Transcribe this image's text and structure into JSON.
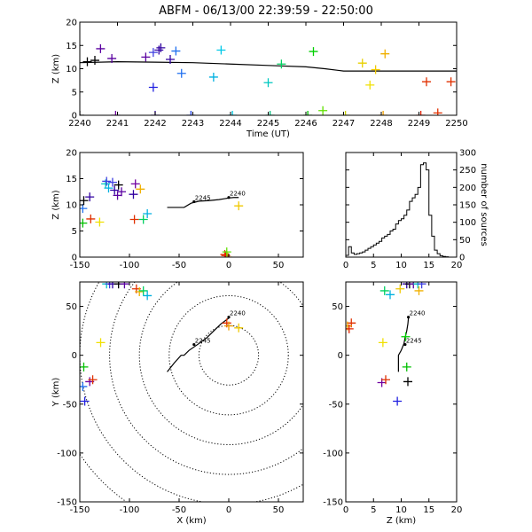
{
  "title": "ABFM - 06/13/00 22:39:59 - 22:50:00",
  "chart_data": [
    {
      "id": "time-height",
      "type": "scatter",
      "xlabel": "Time (UT)",
      "ylabel": "Z (km)",
      "xlim": [
        2240,
        2250
      ],
      "ylim": [
        0,
        20
      ],
      "xticks": [
        2240,
        2241,
        2242,
        2243,
        2244,
        2245,
        2246,
        2247,
        2248,
        2249,
        2250
      ],
      "yticks": [
        0,
        5,
        10,
        15,
        20
      ],
      "points": [
        {
          "x": 2240.2,
          "z": 11.5,
          "color": "#000000"
        },
        {
          "x": 2240.4,
          "z": 11.8,
          "color": "#000000"
        },
        {
          "x": 2240.55,
          "z": 14.3,
          "color": "#5a00a0"
        },
        {
          "x": 2240.85,
          "z": 12.2,
          "color": "#5a00a0"
        },
        {
          "x": 2241.75,
          "z": 12.5,
          "color": "#5a00a0"
        },
        {
          "x": 2241.95,
          "z": 13.5,
          "color": "#4040e0"
        },
        {
          "x": 2242.1,
          "z": 14.0,
          "color": "#3000a0"
        },
        {
          "x": 2242.15,
          "z": 14.5,
          "color": "#3000a0"
        },
        {
          "x": 2242.4,
          "z": 12.0,
          "color": "#3000a0"
        },
        {
          "x": 2242.55,
          "z": 13.8,
          "color": "#2070f0"
        },
        {
          "x": 2242.7,
          "z": 9.0,
          "color": "#2070f0"
        },
        {
          "x": 2241.95,
          "z": 6.0,
          "color": "#2020e0"
        },
        {
          "x": 2243.55,
          "z": 8.2,
          "color": "#00b0e0"
        },
        {
          "x": 2243.75,
          "z": 14.0,
          "color": "#00c8e8"
        },
        {
          "x": 2245.0,
          "z": 7.0,
          "color": "#00c8c0"
        },
        {
          "x": 2245.35,
          "z": 11.0,
          "color": "#00d060"
        },
        {
          "x": 2246.2,
          "z": 13.7,
          "color": "#00d000"
        },
        {
          "x": 2246.45,
          "z": 1.0,
          "color": "#60e000"
        },
        {
          "x": 2247.5,
          "z": 11.2,
          "color": "#e8d000"
        },
        {
          "x": 2247.7,
          "z": 6.5,
          "color": "#f0e000"
        },
        {
          "x": 2247.85,
          "z": 9.8,
          "color": "#f0c800"
        },
        {
          "x": 2248.1,
          "z": 13.2,
          "color": "#f0b000"
        },
        {
          "x": 2249.2,
          "z": 7.2,
          "color": "#e03000"
        },
        {
          "x": 2249.5,
          "z": 0.5,
          "color": "#e03000"
        },
        {
          "x": 2249.85,
          "z": 7.2,
          "color": "#e03000"
        },
        {
          "x": 2240.0,
          "z": 0.0,
          "color": "#000000"
        },
        {
          "x": 2240.95,
          "z": 0.0,
          "color": "#7000a0"
        },
        {
          "x": 2242.0,
          "z": 0.0,
          "color": "#3000a0"
        },
        {
          "x": 2242.95,
          "z": 0.0,
          "color": "#2040e0"
        },
        {
          "x": 2244.05,
          "z": 0.0,
          "color": "#00c8e0"
        },
        {
          "x": 2245.05,
          "z": 0.0,
          "color": "#00c080"
        },
        {
          "x": 2246.05,
          "z": 0.0,
          "color": "#00c000"
        },
        {
          "x": 2247.05,
          "z": 0.0,
          "color": "#c8d000"
        },
        {
          "x": 2248.05,
          "z": 0.0,
          "color": "#f0a000"
        },
        {
          "x": 2249.05,
          "z": 0.0,
          "color": "#e02000"
        }
      ],
      "line": {
        "x": [
          2240,
          2241,
          2242,
          2243,
          2244,
          2245,
          2246,
          2246.5,
          2247,
          2248,
          2249,
          2250
        ],
        "z": [
          11.3,
          11.5,
          11.4,
          11.3,
          11.0,
          10.7,
          10.4,
          10.0,
          9.5,
          9.5,
          9.5,
          9.5
        ]
      }
    },
    {
      "id": "x-height",
      "type": "scatter",
      "xlabel": "",
      "ylabel": "Z (km)",
      "xlim": [
        -150,
        75
      ],
      "ylim": [
        0,
        20
      ],
      "xticks": [
        -150,
        -100,
        -50,
        0,
        50
      ],
      "yticks": [
        0,
        5,
        10,
        15,
        20
      ],
      "points": [
        {
          "x": -146,
          "z": 10.8,
          "color": "#000000"
        },
        {
          "x": -140,
          "z": 11.5,
          "color": "#3000a0"
        },
        {
          "x": -147,
          "z": 9.3,
          "color": "#2070f0"
        },
        {
          "x": -147,
          "z": 6.5,
          "color": "#00c000"
        },
        {
          "x": -139,
          "z": 7.3,
          "color": "#e03000"
        },
        {
          "x": -130,
          "z": 6.7,
          "color": "#f0e000"
        },
        {
          "x": -124,
          "z": 14.0,
          "color": "#00c8c0"
        },
        {
          "x": -123,
          "z": 14.5,
          "color": "#4040e0"
        },
        {
          "x": -121,
          "z": 13.2,
          "color": "#00b0e0"
        },
        {
          "x": -117,
          "z": 14.3,
          "color": "#4040e0"
        },
        {
          "x": -115,
          "z": 12.8,
          "color": "#3000a0"
        },
        {
          "x": -112,
          "z": 11.8,
          "color": "#5a00a0"
        },
        {
          "x": -108,
          "z": 12.5,
          "color": "#5a00a0"
        },
        {
          "x": -111,
          "z": 13.8,
          "color": "#000000"
        },
        {
          "x": -96,
          "z": 12.0,
          "color": "#3000a0"
        },
        {
          "x": -94,
          "z": 14.0,
          "color": "#7000a0"
        },
        {
          "x": -89,
          "z": 13.0,
          "color": "#f0b000"
        },
        {
          "x": -95,
          "z": 7.2,
          "color": "#e03000"
        },
        {
          "x": -86,
          "z": 7.2,
          "color": "#00d060"
        },
        {
          "x": -82,
          "z": 8.3,
          "color": "#00b0e0"
        },
        {
          "x": 10,
          "z": 9.8,
          "color": "#f0c800"
        },
        {
          "x": -4,
          "z": 0.5,
          "color": "#e03000"
        },
        {
          "x": -1,
          "z": 0.0,
          "color": "#f0a000"
        },
        {
          "x": -3,
          "z": 0.3,
          "color": "#e02000"
        },
        {
          "x": -2,
          "z": 1.0,
          "color": "#60e000"
        }
      ],
      "line": {
        "x": [
          -62,
          -45,
          -38,
          -30,
          -20,
          -10,
          0,
          5,
          10
        ],
        "z": [
          9.5,
          9.5,
          10.3,
          10.7,
          10.8,
          11.0,
          11.3,
          11.4,
          11.4
        ]
      },
      "annotations": [
        {
          "text": "2245",
          "x": -35,
          "z": 10.6
        },
        {
          "text": "2240",
          "x": 0,
          "z": 11.4
        }
      ]
    },
    {
      "id": "height-histogram",
      "type": "histogram",
      "xlabel": "",
      "ylabel": "number of sources",
      "xlim": [
        0,
        20
      ],
      "ylim": [
        0,
        300
      ],
      "xticks": [
        0,
        5,
        10,
        15,
        20
      ],
      "yticks": [
        0,
        50,
        100,
        150,
        200,
        250,
        300
      ],
      "bins_x": [
        0,
        0.5,
        1,
        1.5,
        2,
        2.5,
        3,
        3.5,
        4,
        4.5,
        5,
        5.5,
        6,
        6.5,
        7,
        7.5,
        8,
        8.5,
        9,
        9.5,
        10,
        10.5,
        11,
        11.5,
        12,
        12.5,
        13,
        13.5,
        14,
        14.5,
        15,
        15.5,
        16,
        16.5,
        17,
        17.5,
        18,
        18.5,
        19,
        19.5
      ],
      "counts": [
        5,
        30,
        12,
        8,
        10,
        12,
        15,
        20,
        25,
        30,
        35,
        40,
        45,
        55,
        60,
        65,
        75,
        80,
        95,
        105,
        110,
        120,
        135,
        160,
        170,
        180,
        200,
        265,
        270,
        250,
        120,
        60,
        20,
        10,
        4,
        2,
        1,
        0,
        0,
        0
      ]
    },
    {
      "id": "plan-view",
      "type": "scatter",
      "xlabel": "X (km)",
      "ylabel": "Y (km)",
      "xlim": [
        -150,
        75
      ],
      "ylim": [
        -150,
        75
      ],
      "xticks": [
        -150,
        -100,
        -50,
        0,
        50
      ],
      "yticks": [
        -150,
        -100,
        -50,
        0,
        50
      ],
      "points": [
        {
          "x": -145,
          "y": -47,
          "color": "#2020e0"
        },
        {
          "x": -147,
          "y": -32,
          "color": "#2070f0"
        },
        {
          "x": -146,
          "y": -12,
          "color": "#00c000"
        },
        {
          "x": -140,
          "y": -27,
          "color": "#7000a0"
        },
        {
          "x": -137,
          "y": -25,
          "color": "#e03000"
        },
        {
          "x": -129,
          "y": 13,
          "color": "#f0e000"
        },
        {
          "x": -123,
          "y": 73,
          "color": "#00c8c0"
        },
        {
          "x": -120,
          "y": 73,
          "color": "#4040e0"
        },
        {
          "x": -117,
          "y": 73,
          "color": "#3000a0"
        },
        {
          "x": -111,
          "y": 73,
          "color": "#000000"
        },
        {
          "x": -105,
          "y": 73,
          "color": "#5a00a0"
        },
        {
          "x": -93,
          "y": 68,
          "color": "#e03000"
        },
        {
          "x": -90,
          "y": 65,
          "color": "#f0b000"
        },
        {
          "x": -86,
          "y": 66,
          "color": "#00d060"
        },
        {
          "x": -82,
          "y": 61,
          "color": "#00b0e0"
        },
        {
          "x": -2,
          "y": 33,
          "color": "#e03000"
        },
        {
          "x": 0,
          "y": 30,
          "color": "#f0a000"
        },
        {
          "x": 10,
          "y": 28,
          "color": "#f0c800"
        }
      ],
      "line": {
        "x": [
          -62,
          -55,
          -48,
          -45,
          -40,
          -30,
          -22,
          -15,
          -8,
          0
        ],
        "y": [
          -17,
          -8,
          0,
          0,
          5,
          12,
          18,
          25,
          32,
          38
        ]
      },
      "annotations": [
        {
          "text": "2240",
          "x": 0,
          "y": 39
        },
        {
          "text": "2245",
          "x": -35,
          "y": 11
        }
      ],
      "range_rings_km": [
        30,
        60,
        90,
        120,
        150,
        180
      ],
      "ring_center": [
        0,
        0
      ]
    },
    {
      "id": "z-y-view",
      "type": "scatter",
      "xlabel": "Z (km)",
      "ylabel": "",
      "xlim": [
        0,
        20
      ],
      "ylim": [
        -150,
        75
      ],
      "xticks": [
        0,
        5,
        10,
        15,
        20
      ],
      "yticks": [
        -150,
        -100,
        -50,
        0,
        50
      ],
      "points": [
        {
          "z": 9.3,
          "y": -47,
          "color": "#2020e0"
        },
        {
          "z": 6.5,
          "y": -28,
          "color": "#7000a0"
        },
        {
          "z": 7.2,
          "y": -25,
          "color": "#e03000"
        },
        {
          "z": 11.2,
          "y": -27,
          "color": "#000000"
        },
        {
          "z": 11.0,
          "y": -12,
          "color": "#00c000"
        },
        {
          "z": 6.7,
          "y": 13,
          "color": "#f0e000"
        },
        {
          "z": 10.8,
          "y": 19,
          "color": "#00d000"
        },
        {
          "z": 1.0,
          "y": 33,
          "color": "#e03000"
        },
        {
          "z": 0.3,
          "y": 30,
          "color": "#f0a000"
        },
        {
          "z": 0.6,
          "y": 27,
          "color": "#e02000"
        },
        {
          "z": 7.0,
          "y": 66,
          "color": "#00d060"
        },
        {
          "z": 8.0,
          "y": 62,
          "color": "#00b0e0"
        },
        {
          "z": 11.0,
          "y": 73,
          "color": "#3000a0"
        },
        {
          "z": 11.5,
          "y": 73,
          "color": "#000000"
        },
        {
          "z": 12.2,
          "y": 73,
          "color": "#5a00a0"
        },
        {
          "z": 13.0,
          "y": 73,
          "color": "#00c8c0"
        },
        {
          "z": 13.7,
          "y": 73,
          "color": "#4040e0"
        },
        {
          "z": 9.8,
          "y": 68,
          "color": "#f0c800"
        },
        {
          "z": 13.2,
          "y": 66,
          "color": "#f0b000"
        }
      ],
      "line": {
        "z": [
          9.5,
          9.5,
          10.0,
          10.5,
          10.7,
          11.0,
          11.2,
          11.3
        ],
        "y": [
          -17,
          0,
          5,
          12,
          18,
          25,
          32,
          38
        ]
      },
      "annotations": [
        {
          "text": "2240",
          "z": 11.3,
          "y": 39
        },
        {
          "text": "2245",
          "z": 10.7,
          "y": 11
        }
      ]
    }
  ]
}
